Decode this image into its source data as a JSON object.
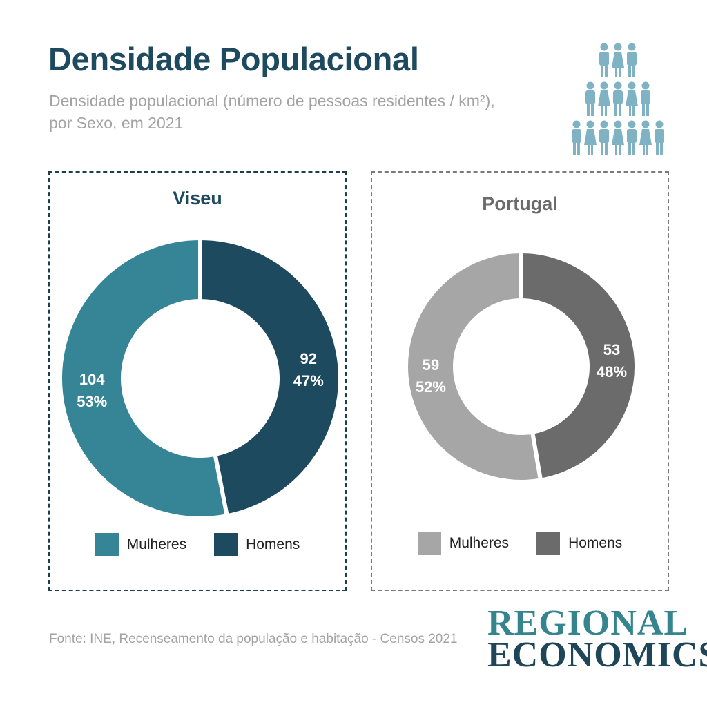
{
  "title": "Densidade Populacional",
  "subtitle": "Densidade populacional (número de pessoas residentes / km²), por Sexo, em 2021",
  "footer": "Fonte: INE, Recenseamento da população e habitação - Censos 2021",
  "logo": {
    "line1": "Regional",
    "line2": "Economics"
  },
  "icons": {
    "header": "people-pyramid-icon"
  },
  "colors": {
    "title": "#1d4a5e",
    "viseu_mulheres": "#358597",
    "viseu_homens": "#1d4a5e",
    "portugal_mulheres": "#a6a6a6",
    "portugal_homens": "#6b6b6b",
    "icon": "#7fb3c3"
  },
  "chart_data": [
    {
      "type": "pie",
      "title": "Viseu",
      "categories": [
        "Mulheres",
        "Homens"
      ],
      "values": [
        104,
        92
      ],
      "percent_labels": [
        "53%",
        "47%"
      ],
      "colors": [
        "#358597",
        "#1d4a5e"
      ],
      "legend": "bottom"
    },
    {
      "type": "pie",
      "title": "Portugal",
      "categories": [
        "Mulheres",
        "Homens"
      ],
      "values": [
        59,
        53
      ],
      "percent_labels": [
        "52%",
        "48%"
      ],
      "colors": [
        "#a6a6a6",
        "#6b6b6b"
      ],
      "legend": "bottom"
    }
  ]
}
